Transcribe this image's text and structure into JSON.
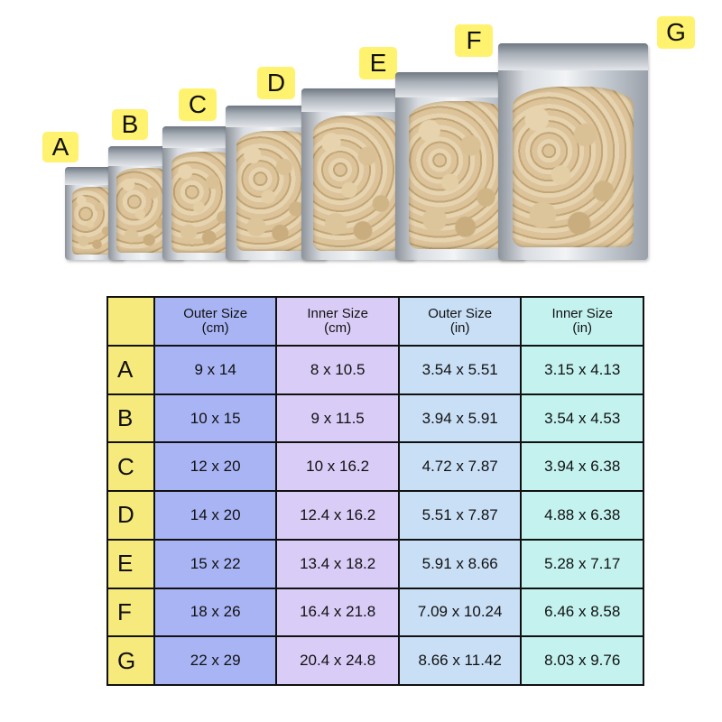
{
  "bags": [
    {
      "label": "A"
    },
    {
      "label": "B"
    },
    {
      "label": "C"
    },
    {
      "label": "D"
    },
    {
      "label": "E"
    },
    {
      "label": "F"
    },
    {
      "label": "G"
    }
  ],
  "table": {
    "headers": [
      {
        "line1": "",
        "line2": ""
      },
      {
        "line1": "Outer Size",
        "line2": "(cm)"
      },
      {
        "line1": "Inner Size",
        "line2": "(cm)"
      },
      {
        "line1": "Outer Size",
        "line2": "(in)"
      },
      {
        "line1": "Inner Size",
        "line2": "(in)"
      }
    ],
    "rows": [
      {
        "label": "A",
        "outer_cm": "9 x 14",
        "inner_cm": "8 x 10.5",
        "outer_in": "3.54 x 5.51",
        "inner_in": "3.15 x 4.13"
      },
      {
        "label": "B",
        "outer_cm": "10 x 15",
        "inner_cm": "9 x 11.5",
        "outer_in": "3.94 x 5.91",
        "inner_in": "3.54 x 4.53"
      },
      {
        "label": "C",
        "outer_cm": "12 x 20",
        "inner_cm": "10 x 16.2",
        "outer_in": "4.72 x 7.87",
        "inner_in": "3.94 x 6.38"
      },
      {
        "label": "D",
        "outer_cm": "14 x 20",
        "inner_cm": "12.4 x 16.2",
        "outer_in": "5.51 x 7.87",
        "inner_in": "4.88 x 6.38"
      },
      {
        "label": "E",
        "outer_cm": "15 x 22",
        "inner_cm": "13.4 x 18.2",
        "outer_in": "5.91 x 8.66",
        "inner_in": "5.28 x 7.17"
      },
      {
        "label": "F",
        "outer_cm": "18 x 26",
        "inner_cm": "16.4 x 21.8",
        "outer_in": "7.09 x 10.24",
        "inner_in": "6.46 x 8.58"
      },
      {
        "label": "G",
        "outer_cm": "22 x 29",
        "inner_cm": "20.4 x 24.8",
        "outer_in": "8.66 x 11.42",
        "inner_in": "8.03 x 9.76"
      }
    ]
  },
  "colors": {
    "label_yellow": "#fff26e",
    "letter_column": "#f6ea7c",
    "outer_cm_column": "#a9b4f5",
    "inner_cm_column": "#d9ccf6",
    "outer_in_column": "#c9dff6",
    "inner_in_column": "#c3f2ef"
  }
}
